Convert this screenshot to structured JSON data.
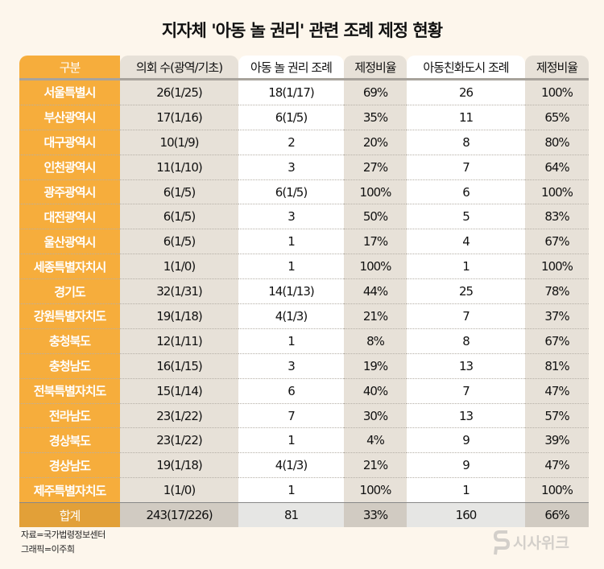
{
  "title": "지자체 '아동 놀 권리' 관련 조례 제정 현황",
  "headers": [
    "구분",
    "의회 수(광역/기초)",
    "아동 놀 권리 조례",
    "제정비율",
    "아동친화도시 조례",
    "제정비율"
  ],
  "rows": [
    [
      "서울특별시",
      "26(1/25)",
      "18(1/17)",
      "69%",
      "26",
      "100%"
    ],
    [
      "부산광역시",
      "17(1/16)",
      "6(1/5)",
      "35%",
      "11",
      "65%"
    ],
    [
      "대구광역시",
      "10(1/9)",
      "2",
      "20%",
      "8",
      "80%"
    ],
    [
      "인천광역시",
      "11(1/10)",
      "3",
      "27%",
      "7",
      "64%"
    ],
    [
      "광주광역시",
      "6(1/5)",
      "6(1/5)",
      "100%",
      "6",
      "100%"
    ],
    [
      "대전광역시",
      "6(1/5)",
      "3",
      "50%",
      "5",
      "83%"
    ],
    [
      "울산광역시",
      "6(1/5)",
      "1",
      "17%",
      "4",
      "67%"
    ],
    [
      "세종특별자치시",
      "1(1/0)",
      "1",
      "100%",
      "1",
      "100%"
    ],
    [
      "경기도",
      "32(1/31)",
      "14(1/13)",
      "44%",
      "25",
      "78%"
    ],
    [
      "강원특별자치도",
      "19(1/18)",
      "4(1/3)",
      "21%",
      "7",
      "37%"
    ],
    [
      "충청북도",
      "12(1/11)",
      "1",
      "8%",
      "8",
      "67%"
    ],
    [
      "충청남도",
      "16(1/15)",
      "3",
      "19%",
      "13",
      "81%"
    ],
    [
      "전북특별자치도",
      "15(1/14)",
      "6",
      "40%",
      "7",
      "47%"
    ],
    [
      "전라남도",
      "23(1/22)",
      "7",
      "30%",
      "13",
      "57%"
    ],
    [
      "경상북도",
      "23(1/22)",
      "1",
      "4%",
      "9",
      "39%"
    ],
    [
      "경상남도",
      "19(1/18)",
      "4(1/3)",
      "21%",
      "9",
      "47%"
    ],
    [
      "제주특별자치도",
      "1(1/0)",
      "1",
      "100%",
      "1",
      "100%"
    ]
  ],
  "total": [
    "합계",
    "243(17/226)",
    "81",
    "33%",
    "160",
    "66%"
  ],
  "source": "자료=국가법령정보센터",
  "graphic": "그래픽=이주희",
  "logo": "시사위크"
}
